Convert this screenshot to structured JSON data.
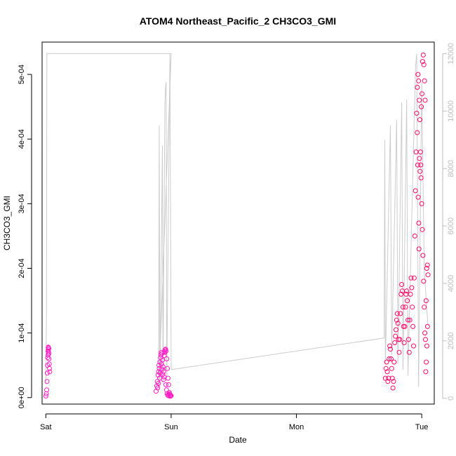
{
  "chart_data": {
    "type": "scatter",
    "title": "ATOM4 Northeast_Pacific_2 CH3CO3_GMI",
    "xlabel": "Date",
    "ylabel": "CH3CO3_GMI",
    "x_ticks": [
      "Sat",
      "Sun",
      "Mon",
      "Tue"
    ],
    "y_ticks": [
      "0e+00",
      "1e-04",
      "2e-04",
      "3e-04",
      "4e-04",
      "5e-04"
    ],
    "y2_ticks": [
      "0",
      "2000",
      "4000",
      "6000",
      "8000",
      "10000",
      "12000"
    ],
    "xlim": [
      -0.03,
      3.1
    ],
    "ylim": [
      -1e-05,
      0.00055
    ],
    "y2lim": [
      -200,
      12400
    ],
    "grid": false,
    "legend": "none",
    "colors": {
      "points_early": "#ff1fc4",
      "points_late": "#ff0a6a",
      "altitude_line": "#cccccc",
      "right_axis": "#bdbdbd"
    },
    "series": [
      {
        "axis": "left",
        "style": "points",
        "points": [
          [
            0.0,
            2.5e-06
          ],
          [
            0.004,
            6e-06
          ],
          [
            0.007,
            1.2e-05
          ],
          [
            0.009,
            2.5e-05
          ],
          [
            0.011,
            3.8e-05
          ],
          [
            0.013,
            5e-05
          ],
          [
            0.015,
            6.2e-05
          ],
          [
            0.017,
            7.2e-05
          ],
          [
            0.019,
            7.7e-05
          ],
          [
            0.021,
            7.4e-05
          ],
          [
            0.023,
            6.8e-05
          ],
          [
            0.025,
            6e-05
          ],
          [
            0.027,
            5.2e-05
          ],
          [
            0.029,
            4.5e-05
          ],
          [
            0.031,
            4e-05
          ],
          [
            0.02,
            7.8e-05
          ],
          [
            0.024,
            7.6e-05
          ],
          [
            0.018,
            6.6e-05
          ],
          [
            0.022,
            7e-05
          ],
          [
            0.88,
            1e-05
          ],
          [
            0.885,
            1.8e-05
          ],
          [
            0.89,
            2.5e-05
          ],
          [
            0.895,
            3.5e-05
          ],
          [
            0.9,
            4e-05
          ],
          [
            0.905,
            4.5e-05
          ],
          [
            0.91,
            5.5e-05
          ],
          [
            0.915,
            6.2e-05
          ],
          [
            0.92,
            7e-05
          ],
          [
            0.925,
            6.8e-05
          ],
          [
            0.93,
            5.8e-05
          ],
          [
            0.935,
            4.8e-05
          ],
          [
            0.94,
            4e-05
          ],
          [
            0.945,
            6.5e-05
          ],
          [
            0.95,
            7e-05
          ],
          [
            0.955,
            7.5e-05
          ],
          [
            0.96,
            7.2e-05
          ],
          [
            0.965,
            6e-05
          ],
          [
            0.97,
            4.5e-05
          ],
          [
            0.975,
            3e-05
          ],
          [
            0.98,
            2e-05
          ],
          [
            0.985,
            8e-06
          ],
          [
            0.99,
            4e-06
          ],
          [
            0.995,
            3e-06
          ],
          [
            1.0,
            3e-06
          ],
          [
            0.892,
            1.5e-05
          ],
          [
            0.898,
            2.2e-05
          ],
          [
            0.903,
            5e-05
          ],
          [
            0.908,
            3e-05
          ],
          [
            0.912,
            3.8e-05
          ],
          [
            0.918,
            6.6e-05
          ],
          [
            0.923,
            5.2e-05
          ],
          [
            0.928,
            4.4e-05
          ],
          [
            0.933,
            3.6e-05
          ],
          [
            0.938,
            2.8e-05
          ],
          [
            0.943,
            3.2e-05
          ],
          [
            0.948,
            7.2e-05
          ],
          [
            0.953,
            7.4e-05
          ],
          [
            0.958,
            2e-05
          ],
          [
            0.963,
            1.2e-05
          ],
          [
            0.968,
            6e-06
          ],
          [
            0.973,
            4e-06
          ],
          [
            0.978,
            3e-06
          ],
          [
            0.983,
            5e-06
          ],
          [
            0.988,
            6e-06
          ],
          [
            0.993,
            2e-06
          ]
        ]
      },
      {
        "axis": "left",
        "style": "points",
        "points": [
          [
            2.71,
            3e-05
          ],
          [
            2.715,
            4.5e-05
          ],
          [
            2.72,
            5.5e-05
          ],
          [
            2.725,
            4e-05
          ],
          [
            2.73,
            2.5e-05
          ],
          [
            2.735,
            3e-05
          ],
          [
            2.74,
            6e-05
          ],
          [
            2.745,
            8e-05
          ],
          [
            2.75,
            7.5e-05
          ],
          [
            2.755,
            6e-05
          ],
          [
            2.76,
            4.5e-05
          ],
          [
            2.765,
            3e-05
          ],
          [
            2.77,
            1.5e-05
          ],
          [
            2.775,
            2.5e-05
          ],
          [
            2.78,
            5.5e-05
          ],
          [
            2.785,
            8.5e-05
          ],
          [
            2.79,
            9.5e-05
          ],
          [
            2.795,
            0.000105
          ],
          [
            2.8,
            0.00012
          ],
          [
            2.805,
            0.00013
          ],
          [
            2.81,
            0.000115
          ],
          [
            2.815,
            9e-05
          ],
          [
            2.82,
            7e-05
          ],
          [
            2.825,
            9e-05
          ],
          [
            2.83,
            0.00013
          ],
          [
            2.835,
            0.00016
          ],
          [
            2.84,
            0.000175
          ],
          [
            2.845,
            0.000165
          ],
          [
            2.85,
            0.00014
          ],
          [
            2.855,
            0.00011
          ],
          [
            2.86,
            8.5e-05
          ],
          [
            2.865,
            0.00011
          ],
          [
            2.87,
            0.00014
          ],
          [
            2.875,
            0.00016
          ],
          [
            2.88,
            0.000165
          ],
          [
            2.885,
            0.00015
          ],
          [
            2.89,
            0.00012
          ],
          [
            2.895,
            9e-05
          ],
          [
            2.9,
            7e-05
          ],
          [
            2.905,
            0.00012
          ],
          [
            2.91,
            0.00016
          ],
          [
            2.915,
            0.000185
          ],
          [
            2.92,
            0.00017
          ],
          [
            2.925,
            0.00014
          ],
          [
            2.93,
            0.00011
          ],
          [
            2.935,
            8e-05
          ],
          [
            2.94,
            0.000185
          ],
          [
            2.945,
            0.00025
          ],
          [
            2.95,
            0.00032
          ],
          [
            2.955,
            0.00038
          ],
          [
            2.96,
            0.00044
          ],
          [
            2.965,
            0.00048
          ],
          [
            2.97,
            0.0005
          ],
          [
            2.975,
            0.00049
          ],
          [
            2.98,
            0.00046
          ],
          [
            2.985,
            0.00043
          ],
          [
            2.99,
            0.00038
          ],
          [
            2.995,
            0.00034
          ],
          [
            3.0,
            0.0003
          ],
          [
            3.005,
            0.00026
          ],
          [
            3.01,
            0.00022
          ],
          [
            3.015,
            0.00018
          ],
          [
            3.02,
            0.00014
          ],
          [
            3.025,
            0.0001
          ],
          [
            3.03,
            9e-05
          ],
          [
            3.035,
            0.00015
          ],
          [
            3.04,
            0.0002
          ],
          [
            3.045,
            0.000205
          ],
          [
            3.05,
            0.00019
          ],
          [
            2.982,
            0.00037
          ],
          [
            2.987,
            0.00035
          ],
          [
            2.992,
            0.00036
          ],
          [
            2.997,
            0.00045
          ],
          [
            3.002,
            0.00047
          ],
          [
            3.007,
            0.00052
          ],
          [
            3.012,
            0.00053
          ],
          [
            3.017,
            0.000515
          ],
          [
            3.022,
            0.00049
          ],
          [
            3.027,
            0.00046
          ],
          [
            2.964,
            0.00041
          ],
          [
            2.968,
            0.00036
          ],
          [
            2.972,
            0.00031
          ],
          [
            2.976,
            0.00027
          ],
          [
            2.978,
            0.00023
          ],
          [
            3.032,
            4e-05
          ],
          [
            3.036,
            5.5e-05
          ],
          [
            3.041,
            8e-05
          ],
          [
            3.046,
            0.00011
          ]
        ]
      },
      {
        "axis": "right",
        "style": "line",
        "points": [
          [
            0.0,
            520
          ],
          [
            0.005,
            3200
          ],
          [
            0.008,
            12000
          ],
          [
            0.35,
            12000
          ],
          [
            0.65,
            12000
          ],
          [
            1.0,
            12000
          ],
          [
            0.9,
            300
          ],
          [
            0.905,
            9500
          ],
          [
            0.91,
            400
          ],
          [
            0.93,
            8800
          ],
          [
            0.935,
            500
          ],
          [
            0.95,
            10200
          ],
          [
            0.955,
            10800
          ],
          [
            0.96,
            11000
          ],
          [
            0.965,
            600
          ],
          [
            0.99,
            12000
          ],
          [
            1.0,
            1000
          ],
          [
            2.7,
            2100
          ],
          [
            2.705,
            9000
          ],
          [
            2.71,
            1200
          ],
          [
            2.75,
            9500
          ],
          [
            2.76,
            1500
          ],
          [
            2.8,
            9700
          ],
          [
            2.81,
            1200
          ],
          [
            2.84,
            10300
          ],
          [
            2.85,
            1000
          ],
          [
            2.88,
            10400
          ],
          [
            2.89,
            800
          ],
          [
            2.95,
            11500
          ],
          [
            2.96,
            12000
          ],
          [
            2.975,
            400
          ],
          [
            3.0,
            11000
          ],
          [
            3.02,
            4500
          ],
          [
            3.05,
            2500
          ]
        ]
      }
    ]
  }
}
